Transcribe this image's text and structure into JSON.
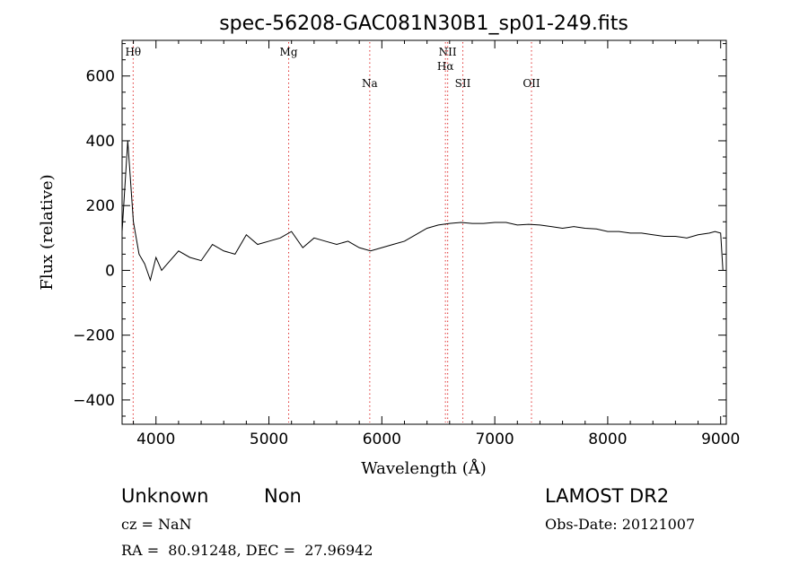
{
  "chart_data": {
    "type": "line",
    "title": "spec-56208-GAC081N30B1_sp01-249.fits",
    "xlabel": "Wavelength (Å)",
    "ylabel": "Flux (relative)",
    "xlim": [
      3700,
      9050
    ],
    "ylim": [
      -475,
      710
    ],
    "x_ticks": [
      4000,
      5000,
      6000,
      7000,
      8000,
      9000
    ],
    "y_ticks": [
      -400,
      -200,
      0,
      200,
      400,
      600
    ],
    "x_tick_labels": [
      "4000",
      "5000",
      "6000",
      "7000",
      "8000",
      "9000"
    ],
    "y_tick_labels": [
      "−400",
      "−200",
      "0",
      "200",
      "400",
      "600"
    ],
    "grid": false,
    "series_color": "#000000",
    "spectrum_points": [
      [
        3700,
        120
      ],
      [
        3750,
        400
      ],
      [
        3800,
        150
      ],
      [
        3850,
        50
      ],
      [
        3900,
        20
      ],
      [
        3950,
        -30
      ],
      [
        4000,
        40
      ],
      [
        4050,
        0
      ],
      [
        4100,
        20
      ],
      [
        4200,
        60
      ],
      [
        4300,
        40
      ],
      [
        4400,
        30
      ],
      [
        4500,
        80
      ],
      [
        4600,
        60
      ],
      [
        4700,
        50
      ],
      [
        4800,
        110
      ],
      [
        4900,
        80
      ],
      [
        5000,
        90
      ],
      [
        5100,
        100
      ],
      [
        5200,
        120
      ],
      [
        5300,
        70
      ],
      [
        5400,
        100
      ],
      [
        5500,
        90
      ],
      [
        5600,
        80
      ],
      [
        5700,
        90
      ],
      [
        5800,
        70
      ],
      [
        5900,
        60
      ],
      [
        6000,
        70
      ],
      [
        6100,
        80
      ],
      [
        6200,
        90
      ],
      [
        6300,
        110
      ],
      [
        6400,
        130
      ],
      [
        6500,
        140
      ],
      [
        6600,
        145
      ],
      [
        6700,
        148
      ],
      [
        6800,
        145
      ],
      [
        6900,
        145
      ],
      [
        7000,
        148
      ],
      [
        7100,
        148
      ],
      [
        7200,
        140
      ],
      [
        7300,
        142
      ],
      [
        7400,
        140
      ],
      [
        7500,
        135
      ],
      [
        7600,
        130
      ],
      [
        7700,
        135
      ],
      [
        7800,
        130
      ],
      [
        7900,
        128
      ],
      [
        8000,
        120
      ],
      [
        8100,
        120
      ],
      [
        8200,
        115
      ],
      [
        8300,
        115
      ],
      [
        8400,
        110
      ],
      [
        8500,
        105
      ],
      [
        8600,
        105
      ],
      [
        8700,
        100
      ],
      [
        8800,
        110
      ],
      [
        8900,
        115
      ],
      [
        8950,
        120
      ],
      [
        9000,
        115
      ],
      [
        9020,
        0
      ]
    ],
    "lines": [
      {
        "label": "Hθ",
        "x": 3798,
        "row": 0
      },
      {
        "label": "Mg",
        "x": 5175,
        "row": 0
      },
      {
        "label": "Na",
        "x": 5893,
        "row": 1
      },
      {
        "label": "NII",
        "x": 6583,
        "row": 0
      },
      {
        "label": "Hα",
        "x": 6563,
        "row": 2
      },
      {
        "label": "SII",
        "x": 6717,
        "row": 1
      },
      {
        "label": "OII",
        "x": 7325,
        "row": 1
      }
    ],
    "line_marker_color": "#e03030"
  },
  "info": {
    "class_text": "Unknown",
    "subclass_text": "Non",
    "survey_text": "LAMOST DR2",
    "cz_text": "cz = NaN",
    "obs_date_text": "Obs-Date: 20121007",
    "radec_text": "RA =  80.91248, DEC =  27.96942"
  }
}
